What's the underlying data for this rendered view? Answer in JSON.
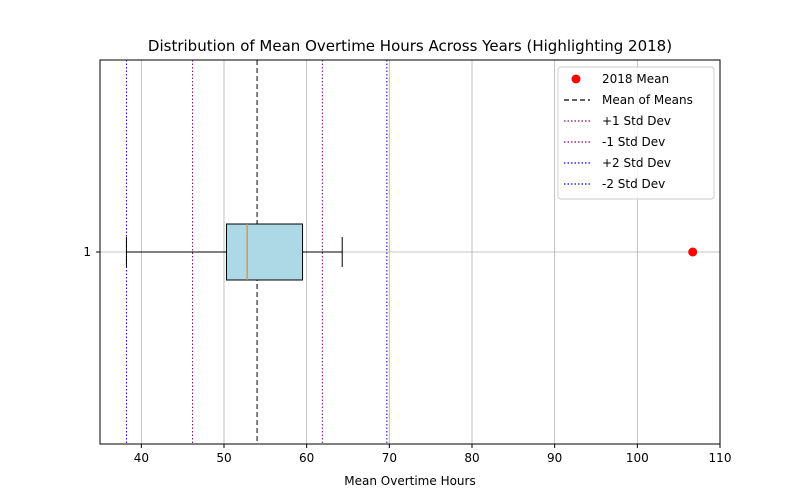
{
  "chart_data": {
    "type": "boxplot",
    "orientation": "horizontal",
    "title": "Distribution of Mean Overtime Hours Across Years (Highlighting 2018)",
    "xlabel": "Mean Overtime Hours",
    "ylabel": "",
    "xlim": [
      35,
      110
    ],
    "xticks": [
      40,
      50,
      60,
      70,
      80,
      90,
      100,
      110
    ],
    "ytick_labels": [
      "1"
    ],
    "grid": true,
    "box": {
      "whisker_low": 38.2,
      "q1": 50.3,
      "median": 52.8,
      "q3": 59.5,
      "whisker_high": 64.3,
      "fill_color": "#add8e6",
      "median_color": "#ff7f0e"
    },
    "highlight_point": {
      "label": "2018 Mean",
      "x": 106.7,
      "color": "#ff0000"
    },
    "reference_lines": [
      {
        "label": "Mean of Means",
        "x": 54.0,
        "color": "#000000",
        "style": "dashed"
      },
      {
        "label": "+1 Std Dev",
        "x": 61.9,
        "color": "#800080",
        "style": "dotted"
      },
      {
        "label": "-1 Std Dev",
        "x": 46.2,
        "color": "#800080",
        "style": "dotted"
      },
      {
        "label": "+2 Std Dev",
        "x": 69.7,
        "color": "#0000ff",
        "style": "dotted"
      },
      {
        "label": "-2 Std Dev",
        "x": 38.2,
        "color": "#0000ff",
        "style": "dotted"
      }
    ],
    "legend_position": "top-right"
  }
}
